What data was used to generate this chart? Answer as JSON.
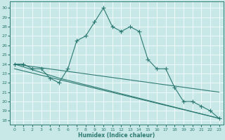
{
  "xlabel": "Humidex (Indice chaleur)",
  "bg_color": "#c8e8e8",
  "line_color": "#2d7a72",
  "grid_color": "#ffffff",
  "xlim": [
    -0.5,
    23.5
  ],
  "ylim": [
    17.5,
    30.7
  ],
  "yticks": [
    18,
    19,
    20,
    21,
    22,
    23,
    24,
    25,
    26,
    27,
    28,
    29,
    30
  ],
  "xticks": [
    0,
    1,
    2,
    3,
    4,
    5,
    6,
    7,
    8,
    9,
    10,
    11,
    12,
    13,
    14,
    15,
    16,
    17,
    18,
    19,
    20,
    21,
    22,
    23
  ],
  "series1_x": [
    0,
    1,
    2,
    3,
    4,
    5,
    6,
    7,
    8,
    9,
    10,
    11,
    12,
    13,
    14,
    15,
    16,
    17,
    18,
    19,
    20,
    21,
    22,
    23
  ],
  "series1_y": [
    24.0,
    24.0,
    23.5,
    23.5,
    22.5,
    22.0,
    23.5,
    26.5,
    27.0,
    28.5,
    30.0,
    28.0,
    27.5,
    28.0,
    27.5,
    24.5,
    23.5,
    23.5,
    21.5,
    20.0,
    20.0,
    19.5,
    19.0,
    18.2
  ],
  "series2_x": [
    0,
    5,
    23
  ],
  "series2_y": [
    24.0,
    22.5,
    18.2
  ],
  "series3_x": [
    0,
    23
  ],
  "series3_y": [
    23.5,
    18.2
  ],
  "series4_x": [
    0,
    23
  ],
  "series4_y": [
    24.0,
    21.0
  ]
}
